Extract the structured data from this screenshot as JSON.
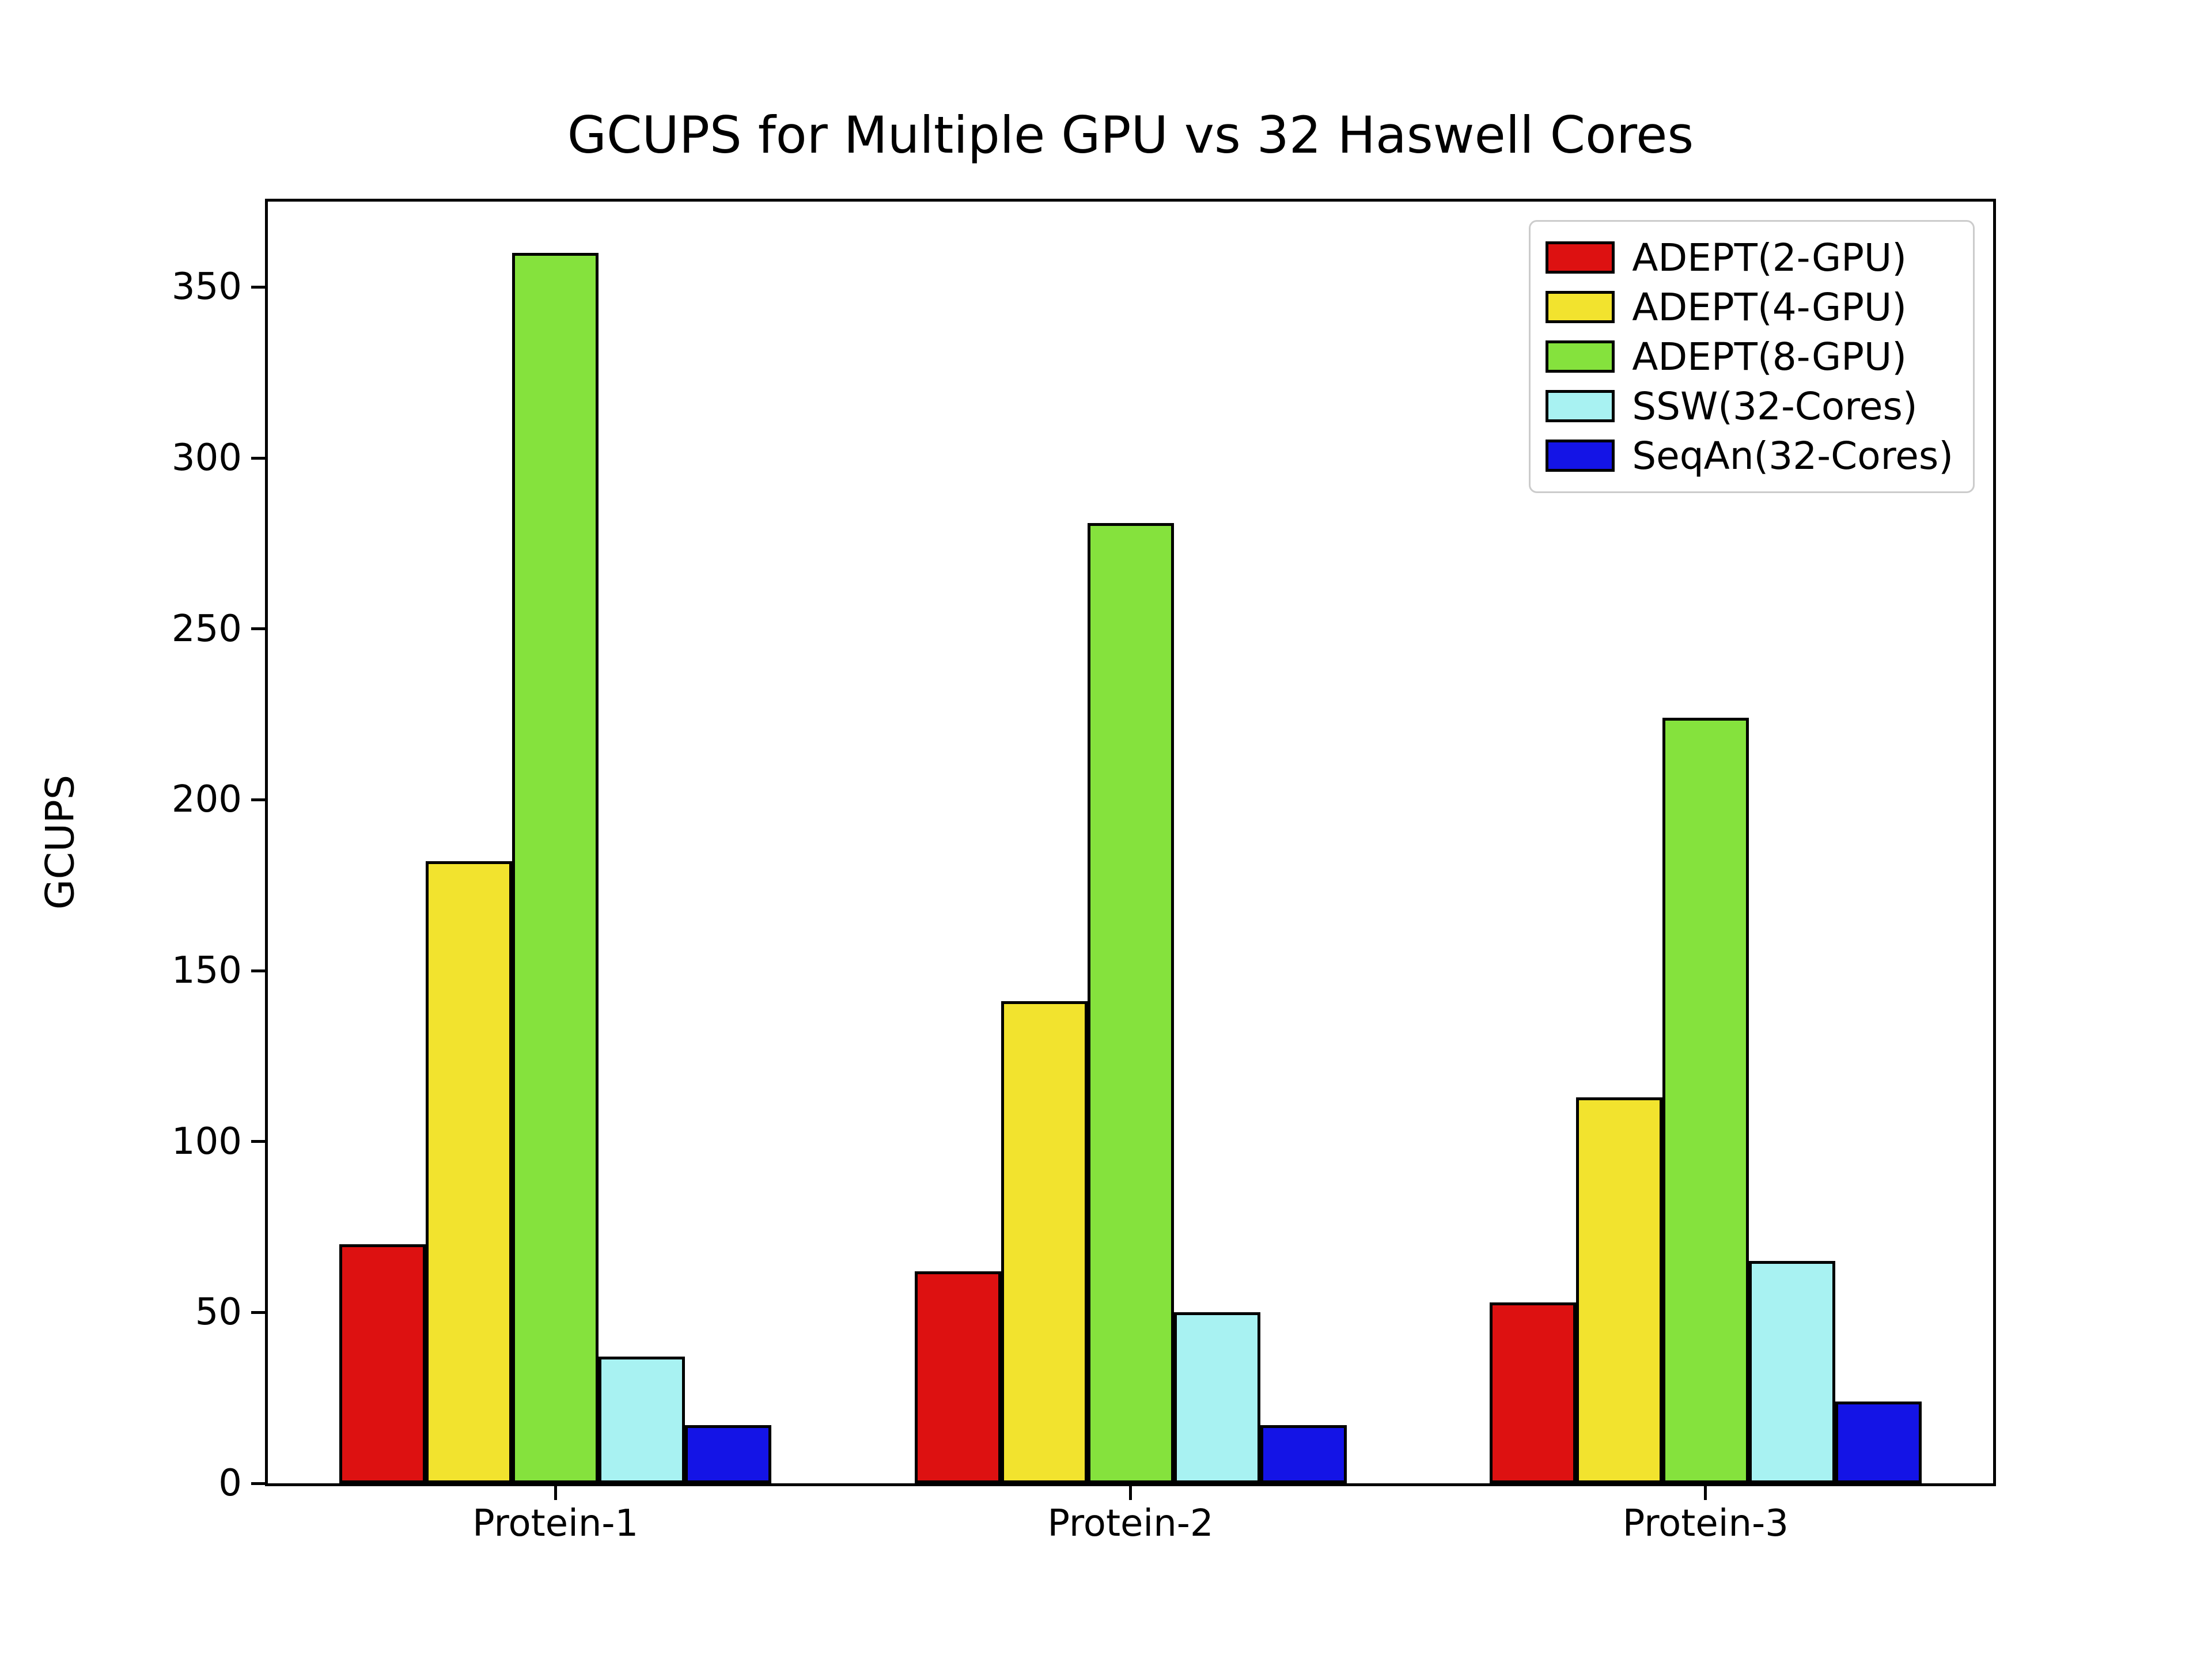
{
  "chart_data": {
    "type": "bar",
    "title": "GCUPS for Multiple GPU vs 32 Haswell Cores",
    "xlabel": "",
    "ylabel": "GCUPS",
    "categories": [
      "Protein-1",
      "Protein-2",
      "Protein-3"
    ],
    "series": [
      {
        "name": "ADEPT(2-GPU)",
        "color": "#dd1111",
        "values": [
          70,
          62,
          53
        ]
      },
      {
        "name": "ADEPT(4-GPU)",
        "color": "#f2e32e",
        "values": [
          182,
          141,
          113
        ]
      },
      {
        "name": "ADEPT(8-GPU)",
        "color": "#85e23d",
        "values": [
          360,
          281,
          224
        ]
      },
      {
        "name": "SSW(32-Cores)",
        "color": "#a8f2f2",
        "values": [
          37,
          50,
          65
        ]
      },
      {
        "name": "SeqAn(32-Cores)",
        "color": "#1414e6",
        "values": [
          17,
          17,
          24
        ]
      }
    ],
    "ylim": [
      0,
      375
    ],
    "yticks": [
      0,
      50,
      100,
      150,
      200,
      250,
      300,
      350
    ],
    "grid": false,
    "legend_position": "upper right",
    "legend_border_color": "#cccccc",
    "bar_edge_color": "#000000",
    "background_color": "#ffffff"
  }
}
